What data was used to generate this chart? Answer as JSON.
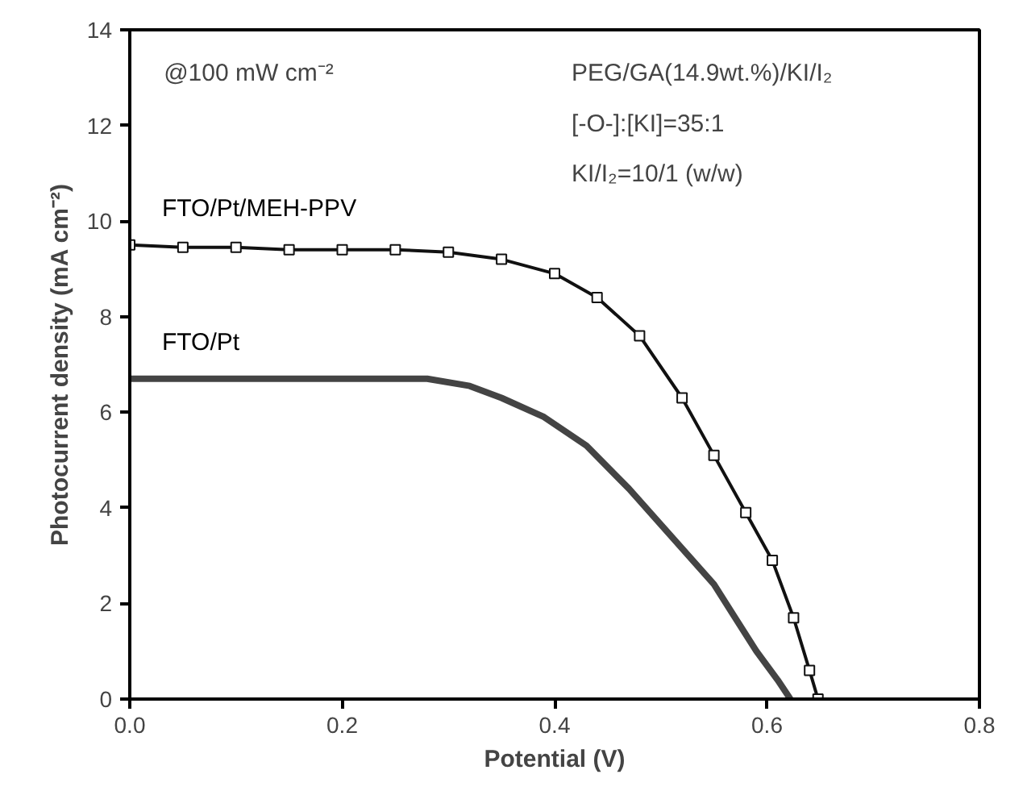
{
  "chart_data": {
    "type": "line",
    "xlabel": "Potential (V)",
    "ylabel": "Photocurrent density (mA cm⁻²)",
    "xlim": [
      0,
      0.8
    ],
    "ylim": [
      0,
      14
    ],
    "xticks": [
      {
        "value": 0,
        "label": "0.0"
      },
      {
        "value": 0.2,
        "label": "0.2"
      },
      {
        "value": 0.4,
        "label": "0.4"
      },
      {
        "value": 0.6,
        "label": "0.6"
      },
      {
        "value": 0.8,
        "label": "0.8"
      }
    ],
    "yticks": [
      0,
      2,
      4,
      6,
      8,
      10,
      12,
      14
    ],
    "grid": false,
    "line_style": "solid",
    "annotations": [
      "@100 mW cm⁻²",
      "PEG/GA(14.9wt.%)/KI/I₂",
      "[-O-]:[KI]=35:1",
      "KI/I₂=10/1 (w/w)"
    ],
    "series": [
      {
        "name": "FTO/Pt/MEH-PPV",
        "color": "#111111",
        "marker": "square",
        "x": [
          0,
          0.05,
          0.1,
          0.15,
          0.2,
          0.25,
          0.3,
          0.35,
          0.4,
          0.44,
          0.48,
          0.52,
          0.55,
          0.58,
          0.605,
          0.625,
          0.64,
          0.648
        ],
        "values": [
          9.5,
          9.45,
          9.45,
          9.4,
          9.4,
          9.4,
          9.35,
          9.2,
          8.9,
          8.4,
          7.6,
          6.3,
          5.1,
          3.9,
          2.9,
          1.7,
          0.6,
          0
        ]
      },
      {
        "name": "FTO/Pt",
        "color": "#444444",
        "marker": "none",
        "x": [
          0,
          0.05,
          0.1,
          0.15,
          0.2,
          0.25,
          0.28,
          0.32,
          0.35,
          0.39,
          0.43,
          0.47,
          0.51,
          0.55,
          0.59,
          0.61,
          0.622
        ],
        "values": [
          6.7,
          6.7,
          6.7,
          6.7,
          6.7,
          6.7,
          6.7,
          6.55,
          6.3,
          5.9,
          5.3,
          4.4,
          3.4,
          2.4,
          1.0,
          0.4,
          0
        ]
      }
    ]
  }
}
